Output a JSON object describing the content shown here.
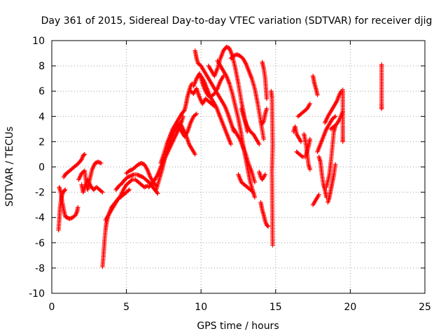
{
  "chart_data": {
    "type": "scatter",
    "title": "Day 361 of 2015, Sidereal Day-to-day VTEC variation (SDTVAR) for receiver djig",
    "xlabel": "GPS time / hours",
    "ylabel": "SDTVAR / TECUs",
    "xlim": [
      0,
      25
    ],
    "ylim": [
      -10,
      10
    ],
    "xticks": [
      0,
      5,
      10,
      15,
      20,
      25
    ],
    "yticks": [
      -10,
      -8,
      -6,
      -4,
      -2,
      0,
      2,
      4,
      6,
      8,
      10
    ],
    "grid": true,
    "marker": "+",
    "color": "#ff0000",
    "tracks": [
      [
        [
          0.45,
          -5.0
        ],
        [
          0.5,
          -4.2
        ],
        [
          0.55,
          -3.2
        ],
        [
          0.65,
          -2.4
        ],
        [
          0.75,
          -2.0
        ],
        [
          0.9,
          -1.8
        ]
      ],
      [
        [
          0.5,
          -1.6
        ],
        [
          0.6,
          -2.0
        ],
        [
          0.7,
          -2.8
        ],
        [
          0.8,
          -3.4
        ],
        [
          0.9,
          -3.9
        ],
        [
          1.0,
          -4.0
        ],
        [
          1.2,
          -4.1
        ],
        [
          1.4,
          -4.0
        ],
        [
          1.6,
          -3.8
        ],
        [
          1.7,
          -3.5
        ],
        [
          1.75,
          -3.2
        ]
      ],
      [
        [
          0.8,
          -0.8
        ],
        [
          0.9,
          -0.6
        ],
        [
          1.0,
          -0.5
        ],
        [
          1.2,
          -0.3
        ],
        [
          1.4,
          -0.1
        ],
        [
          1.6,
          0.1
        ],
        [
          1.8,
          0.3
        ],
        [
          2.0,
          0.6
        ],
        [
          2.1,
          0.9
        ],
        [
          2.2,
          1.0
        ]
      ],
      [
        [
          1.8,
          -1.0
        ],
        [
          2.0,
          -0.5
        ],
        [
          2.2,
          -0.3
        ],
        [
          2.3,
          -1.2
        ],
        [
          2.4,
          -1.8
        ],
        [
          2.5,
          -1.2
        ],
        [
          2.7,
          -0.2
        ],
        [
          2.9,
          0.3
        ],
        [
          3.1,
          0.4
        ],
        [
          3.3,
          0.3
        ]
      ],
      [
        [
          2.0,
          -1.4
        ],
        [
          2.1,
          -2.0
        ],
        [
          2.2,
          -1.6
        ],
        [
          2.4,
          -1.0
        ],
        [
          2.6,
          -1.5
        ],
        [
          2.8,
          -1.8
        ],
        [
          3.0,
          -1.6
        ],
        [
          3.2,
          -1.8
        ],
        [
          3.4,
          -2.0
        ]
      ],
      [
        [
          3.4,
          -7.9
        ],
        [
          3.45,
          -7.2
        ],
        [
          3.5,
          -6.4
        ],
        [
          3.55,
          -5.6
        ],
        [
          3.6,
          -5.0
        ],
        [
          3.65,
          -4.5
        ],
        [
          3.75,
          -4.0
        ],
        [
          3.9,
          -3.5
        ],
        [
          4.0,
          -3.2
        ],
        [
          4.2,
          -2.9
        ],
        [
          4.4,
          -2.6
        ],
        [
          4.6,
          -2.4
        ],
        [
          4.8,
          -2.2
        ],
        [
          5.0,
          -2.0
        ],
        [
          5.2,
          -1.8
        ]
      ],
      [
        [
          3.6,
          -4.2
        ],
        [
          3.8,
          -3.8
        ],
        [
          4.0,
          -3.4
        ],
        [
          4.2,
          -3.0
        ],
        [
          4.4,
          -2.6
        ],
        [
          4.6,
          -2.3
        ],
        [
          4.8,
          -1.8
        ],
        [
          5.0,
          -1.4
        ],
        [
          5.2,
          -1.2
        ],
        [
          5.4,
          -1.0
        ],
        [
          5.6,
          -1.0
        ],
        [
          5.8,
          -1.2
        ],
        [
          6.0,
          -1.4
        ],
        [
          6.2,
          -1.6
        ],
        [
          6.4,
          -1.5
        ]
      ],
      [
        [
          4.3,
          -1.8
        ],
        [
          4.5,
          -1.5
        ],
        [
          4.7,
          -1.3
        ],
        [
          4.9,
          -1.0
        ],
        [
          5.1,
          -0.8
        ],
        [
          5.3,
          -0.7
        ],
        [
          5.5,
          -0.6
        ],
        [
          5.7,
          -0.6
        ],
        [
          5.9,
          -0.7
        ],
        [
          6.1,
          -0.8
        ],
        [
          6.3,
          -1.0
        ],
        [
          6.5,
          -1.2
        ],
        [
          6.7,
          -1.5
        ],
        [
          6.9,
          -1.8
        ],
        [
          7.1,
          -2.1
        ]
      ],
      [
        [
          5.0,
          -0.5
        ],
        [
          5.2,
          -0.3
        ],
        [
          5.4,
          -0.2
        ],
        [
          5.6,
          0.0
        ],
        [
          5.8,
          0.2
        ],
        [
          6.0,
          0.3
        ],
        [
          6.2,
          0.2
        ],
        [
          6.4,
          -0.2
        ],
        [
          6.6,
          -0.8
        ],
        [
          6.8,
          -1.2
        ],
        [
          7.0,
          -1.5
        ]
      ],
      [
        [
          6.5,
          -1.6
        ],
        [
          6.7,
          -1.3
        ],
        [
          6.9,
          -1.0
        ],
        [
          7.1,
          -0.6
        ],
        [
          7.3,
          0.0
        ],
        [
          7.5,
          0.5
        ],
        [
          7.7,
          1.0
        ],
        [
          7.9,
          1.5
        ],
        [
          8.1,
          2.0
        ],
        [
          8.3,
          2.5
        ],
        [
          8.5,
          3.0
        ],
        [
          8.7,
          3.6
        ],
        [
          8.8,
          4.0
        ]
      ],
      [
        [
          7.0,
          -1.8
        ],
        [
          7.2,
          -1.0
        ],
        [
          7.4,
          -0.2
        ],
        [
          7.6,
          0.8
        ],
        [
          7.8,
          1.6
        ],
        [
          8.0,
          2.2
        ],
        [
          8.2,
          2.8
        ],
        [
          8.4,
          3.2
        ],
        [
          8.6,
          3.5
        ],
        [
          8.8,
          3.0
        ],
        [
          9.0,
          2.5
        ],
        [
          9.2,
          1.8
        ],
        [
          9.4,
          1.4
        ],
        [
          9.6,
          1.0
        ]
      ],
      [
        [
          7.3,
          0.3
        ],
        [
          7.5,
          1.0
        ],
        [
          7.7,
          1.8
        ],
        [
          7.9,
          2.4
        ],
        [
          8.1,
          3.0
        ],
        [
          8.3,
          3.4
        ],
        [
          8.5,
          3.8
        ],
        [
          8.7,
          4.2
        ],
        [
          8.9,
          4.5
        ],
        [
          9.0,
          5.0
        ],
        [
          9.1,
          5.6
        ],
        [
          9.2,
          6.0
        ],
        [
          9.3,
          6.4
        ],
        [
          9.4,
          6.6
        ]
      ],
      [
        [
          8.5,
          3.2
        ],
        [
          8.7,
          2.8
        ],
        [
          8.9,
          2.4
        ],
        [
          9.1,
          2.8
        ],
        [
          9.3,
          3.5
        ],
        [
          9.5,
          4.0
        ],
        [
          9.7,
          4.2
        ]
      ],
      [
        [
          9.3,
          6.0
        ],
        [
          9.5,
          5.8
        ],
        [
          9.7,
          6.2
        ],
        [
          9.9,
          5.5
        ],
        [
          10.1,
          5.0
        ],
        [
          10.3,
          5.4
        ],
        [
          10.5,
          5.2
        ],
        [
          10.7,
          5.0
        ],
        [
          10.9,
          4.8
        ]
      ],
      [
        [
          9.5,
          6.4
        ],
        [
          9.7,
          7.0
        ],
        [
          9.9,
          7.4
        ],
        [
          10.1,
          6.6
        ],
        [
          10.3,
          6.0
        ],
        [
          10.5,
          5.6
        ],
        [
          10.7,
          5.6
        ],
        [
          10.9,
          5.8
        ],
        [
          11.1,
          6.2
        ],
        [
          11.3,
          6.8
        ],
        [
          11.5,
          7.2
        ]
      ],
      [
        [
          9.6,
          9.2
        ],
        [
          9.7,
          8.6
        ],
        [
          9.8,
          8.2
        ],
        [
          10.0,
          8.0
        ],
        [
          10.2,
          7.6
        ],
        [
          10.4,
          7.2
        ],
        [
          10.6,
          6.8
        ],
        [
          10.8,
          6.4
        ],
        [
          11.0,
          6.0
        ],
        [
          11.2,
          5.6
        ],
        [
          11.4,
          5.2
        ],
        [
          11.6,
          4.8
        ],
        [
          11.8,
          4.2
        ],
        [
          12.0,
          3.5
        ],
        [
          12.2,
          2.8
        ]
      ],
      [
        [
          10.0,
          7.2
        ],
        [
          10.2,
          6.8
        ],
        [
          10.4,
          6.2
        ],
        [
          10.6,
          5.6
        ],
        [
          10.8,
          5.2
        ],
        [
          11.0,
          4.8
        ],
        [
          11.2,
          4.2
        ],
        [
          11.4,
          3.6
        ],
        [
          11.6,
          3.0
        ],
        [
          11.8,
          2.4
        ],
        [
          12.0,
          1.8
        ]
      ],
      [
        [
          10.5,
          8.0
        ],
        [
          10.7,
          7.6
        ],
        [
          10.9,
          7.2
        ],
        [
          11.1,
          7.8
        ],
        [
          11.3,
          8.6
        ],
        [
          11.5,
          9.2
        ],
        [
          11.7,
          9.5
        ],
        [
          11.9,
          9.4
        ],
        [
          12.1,
          8.8
        ],
        [
          12.3,
          7.8
        ],
        [
          12.5,
          6.6
        ],
        [
          12.7,
          5.2
        ],
        [
          12.9,
          4.0
        ],
        [
          13.1,
          2.8
        ]
      ],
      [
        [
          11.1,
          8.4
        ],
        [
          11.3,
          8.0
        ],
        [
          11.5,
          7.6
        ],
        [
          11.7,
          7.2
        ],
        [
          11.9,
          6.6
        ],
        [
          12.1,
          5.8
        ],
        [
          12.3,
          4.8
        ],
        [
          12.5,
          3.8
        ],
        [
          12.7,
          2.6
        ],
        [
          12.9,
          1.2
        ],
        [
          13.1,
          0.0
        ],
        [
          13.3,
          -1.2
        ],
        [
          13.5,
          -2.0
        ],
        [
          13.6,
          -2.4
        ]
      ],
      [
        [
          12.0,
          8.6
        ],
        [
          12.2,
          8.8
        ],
        [
          12.4,
          8.9
        ],
        [
          12.6,
          8.8
        ],
        [
          12.8,
          8.6
        ],
        [
          13.0,
          8.2
        ],
        [
          13.2,
          7.6
        ],
        [
          13.4,
          7.0
        ],
        [
          13.6,
          6.2
        ],
        [
          13.8,
          5.0
        ],
        [
          14.0,
          3.6
        ],
        [
          14.2,
          2.2
        ]
      ],
      [
        [
          12.2,
          3.0
        ],
        [
          12.4,
          2.6
        ],
        [
          12.6,
          2.2
        ],
        [
          12.8,
          1.6
        ],
        [
          13.0,
          1.0
        ],
        [
          13.2,
          0.2
        ],
        [
          13.4,
          -0.4
        ],
        [
          13.6,
          -1.2
        ]
      ],
      [
        [
          12.7,
          4.6
        ],
        [
          12.9,
          3.8
        ],
        [
          13.1,
          3.2
        ],
        [
          13.3,
          2.8
        ],
        [
          13.5,
          2.6
        ],
        [
          13.7,
          2.2
        ],
        [
          13.9,
          1.8
        ]
      ],
      [
        [
          12.5,
          -0.6
        ],
        [
          12.7,
          -1.2
        ],
        [
          12.9,
          -1.4
        ],
        [
          13.1,
          -1.6
        ],
        [
          13.3,
          -1.8
        ],
        [
          13.5,
          -2.0
        ]
      ],
      [
        [
          14.1,
          8.3
        ],
        [
          14.2,
          7.8
        ],
        [
          14.3,
          7.0
        ],
        [
          14.35,
          6.2
        ],
        [
          14.4,
          5.4
        ]
      ],
      [
        [
          14.0,
          -2.8
        ],
        [
          14.1,
          -3.4
        ],
        [
          14.2,
          -3.8
        ],
        [
          14.3,
          -4.3
        ],
        [
          14.4,
          -4.6
        ],
        [
          14.5,
          -4.7
        ]
      ],
      [
        [
          13.9,
          -0.4
        ],
        [
          14.0,
          -0.8
        ],
        [
          14.1,
          -1.0
        ],
        [
          14.2,
          -0.8
        ],
        [
          14.3,
          -0.6
        ]
      ],
      [
        [
          14.0,
          3.6
        ],
        [
          14.1,
          3.4
        ],
        [
          14.2,
          3.6
        ],
        [
          14.3,
          4.2
        ],
        [
          14.4,
          4.6
        ]
      ],
      [
        [
          14.7,
          6.0
        ],
        [
          14.75,
          5.5
        ],
        [
          14.8,
          1.7
        ],
        [
          14.75,
          -0.3
        ],
        [
          14.8,
          -6.2
        ]
      ],
      [
        [
          16.2,
          2.8
        ],
        [
          16.3,
          3.2
        ],
        [
          16.4,
          2.6
        ],
        [
          16.5,
          2.4
        ],
        [
          16.6,
          2.2
        ],
        [
          16.7,
          2.0
        ]
      ],
      [
        [
          16.5,
          4.0
        ],
        [
          16.7,
          4.2
        ],
        [
          16.9,
          4.4
        ],
        [
          17.1,
          4.6
        ],
        [
          17.3,
          5.0
        ]
      ],
      [
        [
          16.4,
          1.2
        ],
        [
          16.6,
          1.0
        ],
        [
          16.8,
          0.8
        ],
        [
          17.0,
          0.8
        ],
        [
          17.2,
          1.6
        ],
        [
          17.3,
          2.2
        ]
      ],
      [
        [
          16.9,
          2.6
        ],
        [
          17.0,
          2.0
        ],
        [
          17.1,
          1.2
        ],
        [
          17.2,
          0.2
        ],
        [
          17.3,
          -0.2
        ]
      ],
      [
        [
          17.5,
          7.2
        ],
        [
          17.6,
          6.6
        ],
        [
          17.7,
          6.2
        ],
        [
          17.8,
          5.7
        ]
      ],
      [
        [
          17.5,
          -3.0
        ],
        [
          17.6,
          -2.8
        ],
        [
          17.7,
          -2.6
        ],
        [
          17.8,
          -2.4
        ],
        [
          17.9,
          -2.2
        ]
      ],
      [
        [
          17.9,
          0.8
        ],
        [
          18.0,
          0.4
        ],
        [
          18.1,
          -0.6
        ],
        [
          18.2,
          -1.4
        ],
        [
          18.3,
          -1.8
        ],
        [
          18.4,
          -2.4
        ]
      ],
      [
        [
          17.8,
          1.2
        ],
        [
          18.0,
          1.8
        ],
        [
          18.2,
          2.4
        ],
        [
          18.4,
          3.0
        ],
        [
          18.6,
          3.4
        ],
        [
          18.8,
          3.8
        ],
        [
          19.0,
          4.0
        ]
      ],
      [
        [
          18.3,
          3.5
        ],
        [
          18.5,
          4.0
        ],
        [
          18.7,
          4.4
        ],
        [
          18.9,
          4.8
        ],
        [
          19.1,
          5.2
        ],
        [
          19.3,
          5.8
        ],
        [
          19.4,
          6.0
        ]
      ],
      [
        [
          18.4,
          -1.6
        ],
        [
          18.6,
          -0.6
        ],
        [
          18.7,
          0.4
        ],
        [
          18.8,
          1.6
        ],
        [
          18.9,
          2.8
        ],
        [
          19.0,
          3.2
        ]
      ],
      [
        [
          18.5,
          -2.8
        ],
        [
          18.6,
          -2.4
        ],
        [
          18.7,
          -1.8
        ],
        [
          18.8,
          -1.2
        ],
        [
          18.9,
          -0.6
        ],
        [
          19.0,
          0.2
        ]
      ],
      [
        [
          18.7,
          3.0
        ],
        [
          18.9,
          3.2
        ],
        [
          19.1,
          3.4
        ],
        [
          19.3,
          3.8
        ],
        [
          19.5,
          4.4
        ]
      ],
      [
        [
          19.5,
          6.1
        ],
        [
          19.5,
          3.2
        ],
        [
          19.5,
          2.4
        ],
        [
          19.5,
          2.0
        ]
      ],
      [
        [
          22.1,
          8.1
        ],
        [
          22.1,
          7.9
        ],
        [
          22.1,
          5.0
        ],
        [
          22.1,
          4.6
        ]
      ]
    ]
  }
}
